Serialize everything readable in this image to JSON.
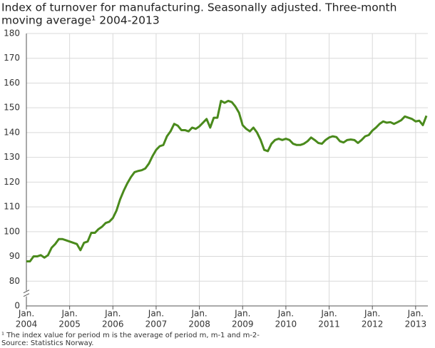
{
  "chart_data": {
    "type": "line",
    "title": [
      "Index of turnover for manufacturing. Seasonally adjusted. Three-month",
      "moving average¹ 2004-2013"
    ],
    "footnote": "¹ The index value for period m is the average of period m, m-1 and m-2-",
    "source": "Source: Statistics Norway.",
    "x": [
      "2004-01",
      "2004-02",
      "2004-03",
      "2004-04",
      "2004-05",
      "2004-06",
      "2004-07",
      "2004-08",
      "2004-09",
      "2004-10",
      "2004-11",
      "2004-12",
      "2005-01",
      "2005-02",
      "2005-03",
      "2005-04",
      "2005-05",
      "2005-06",
      "2005-07",
      "2005-08",
      "2005-09",
      "2005-10",
      "2005-11",
      "2005-12",
      "2006-01",
      "2006-02",
      "2006-03",
      "2006-04",
      "2006-05",
      "2006-06",
      "2006-07",
      "2006-08",
      "2006-09",
      "2006-10",
      "2006-11",
      "2006-12",
      "2007-01",
      "2007-02",
      "2007-03",
      "2007-04",
      "2007-05",
      "2007-06",
      "2007-07",
      "2007-08",
      "2007-09",
      "2007-10",
      "2007-11",
      "2007-12",
      "2008-01",
      "2008-02",
      "2008-03",
      "2008-04",
      "2008-05",
      "2008-06",
      "2008-07",
      "2008-08",
      "2008-09",
      "2008-10",
      "2008-11",
      "2008-12",
      "2009-01",
      "2009-02",
      "2009-03",
      "2009-04",
      "2009-05",
      "2009-06",
      "2009-07",
      "2009-08",
      "2009-09",
      "2009-10",
      "2009-11",
      "2009-12",
      "2010-01",
      "2010-02",
      "2010-03",
      "2010-04",
      "2010-05",
      "2010-06",
      "2010-07",
      "2010-08",
      "2010-09",
      "2010-10",
      "2010-11",
      "2010-12",
      "2011-01",
      "2011-02",
      "2011-03",
      "2011-04",
      "2011-05",
      "2011-06",
      "2011-07",
      "2011-08",
      "2011-09",
      "2011-10",
      "2011-11",
      "2011-12",
      "2012-01",
      "2012-02",
      "2012-03",
      "2012-04",
      "2012-05",
      "2012-06",
      "2012-07",
      "2012-08",
      "2012-09",
      "2012-10",
      "2012-11",
      "2012-12",
      "2013-01",
      "2013-02",
      "2013-03",
      "2013-04"
    ],
    "series": [
      {
        "color": "#4a8a1c",
        "values": [
          88,
          88,
          90,
          90,
          90.5,
          89.5,
          90.5,
          93.5,
          95,
          97,
          97,
          96.5,
          96,
          95.5,
          95,
          92.5,
          95.5,
          96,
          99.5,
          99.5,
          101,
          102,
          103.5,
          104,
          105.5,
          108.5,
          113,
          116.5,
          119.5,
          122,
          124,
          124.5,
          124.8,
          125.5,
          127.5,
          130.5,
          133,
          134.5,
          135,
          138.5,
          140.5,
          143.5,
          142.8,
          141,
          141,
          140.5,
          142,
          141.5,
          142.5,
          144,
          145.5,
          142,
          146,
          146,
          152.8,
          152,
          152.8,
          152.3,
          150.5,
          148,
          143,
          141.5,
          140.5,
          142,
          140,
          137,
          133,
          132.5,
          135.5,
          137,
          137.5,
          137,
          137.5,
          137,
          135.5,
          135,
          135,
          135.5,
          136.5,
          138,
          137,
          135.8,
          135.5,
          137,
          138,
          138.5,
          138.2,
          136.5,
          136,
          137,
          137.2,
          137,
          135.8,
          137,
          138.5,
          139,
          140.8,
          142,
          143.5,
          144.5,
          144,
          144.2,
          143.5,
          144.2,
          145,
          146.5,
          146,
          145.5,
          144.5,
          144.8,
          143,
          146.8
        ]
      }
    ],
    "ylim": [
      0,
      180
    ],
    "y_break": [
      0,
      80
    ],
    "yticks": [
      0,
      80,
      90,
      100,
      110,
      120,
      130,
      140,
      150,
      160,
      170,
      180
    ],
    "xticks": [
      {
        "value": "2004-01",
        "label": [
          "Jan.",
          "2004"
        ]
      },
      {
        "value": "2005-01",
        "label": [
          "Jan.",
          "2005"
        ]
      },
      {
        "value": "2006-01",
        "label": [
          "Jan.",
          "2006"
        ]
      },
      {
        "value": "2007-01",
        "label": [
          "Jan.",
          "2007"
        ]
      },
      {
        "value": "2008-01",
        "label": [
          "Jan.",
          "2008"
        ]
      },
      {
        "value": "2009-01",
        "label": [
          "Jan.",
          "2009"
        ]
      },
      {
        "value": "2010-01",
        "label": [
          "Jan.",
          "2010"
        ]
      },
      {
        "value": "2011-01",
        "label": [
          "Jan.",
          "2011"
        ]
      },
      {
        "value": "2012-01",
        "label": [
          "Jan.",
          "2012"
        ]
      },
      {
        "value": "2013-01",
        "label": [
          "Jan.",
          "2013"
        ]
      }
    ],
    "grid": true
  }
}
